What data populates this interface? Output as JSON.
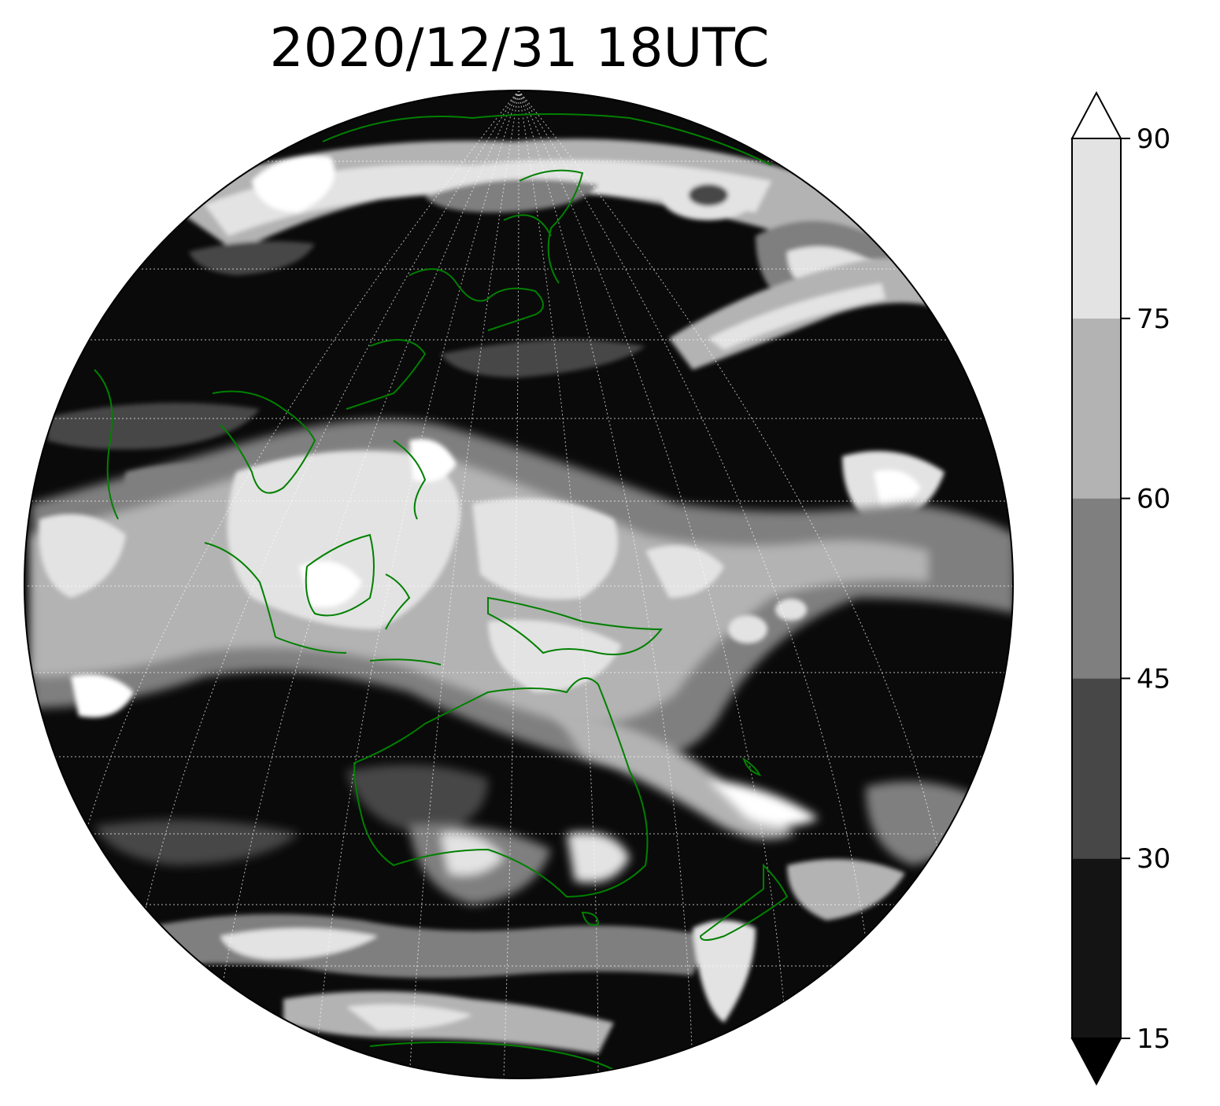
{
  "title": "2020/12/31 18UTC",
  "colorbar": {
    "ticks": [
      "15",
      "30",
      "45",
      "60",
      "75",
      "90"
    ],
    "bins": [
      {
        "range": [
          15,
          30
        ],
        "color": "#141414"
      },
      {
        "range": [
          30,
          45
        ],
        "color": "#474747"
      },
      {
        "range": [
          45,
          60
        ],
        "color": "#7f7f7f"
      },
      {
        "range": [
          60,
          75
        ],
        "color": "#b3b3b3"
      },
      {
        "range": [
          75,
          90
        ],
        "color": "#e3e3e3"
      }
    ],
    "under_color": "#000000",
    "over_color": "#ffffff",
    "extend": "both"
  },
  "map": {
    "projection": "orthographic",
    "gridlines": true,
    "coastline_color": "#008000",
    "field_colors": [
      "#000000",
      "#141414",
      "#474747",
      "#7f7f7f",
      "#b3b3b3",
      "#e3e3e3",
      "#ffffff"
    ]
  }
}
